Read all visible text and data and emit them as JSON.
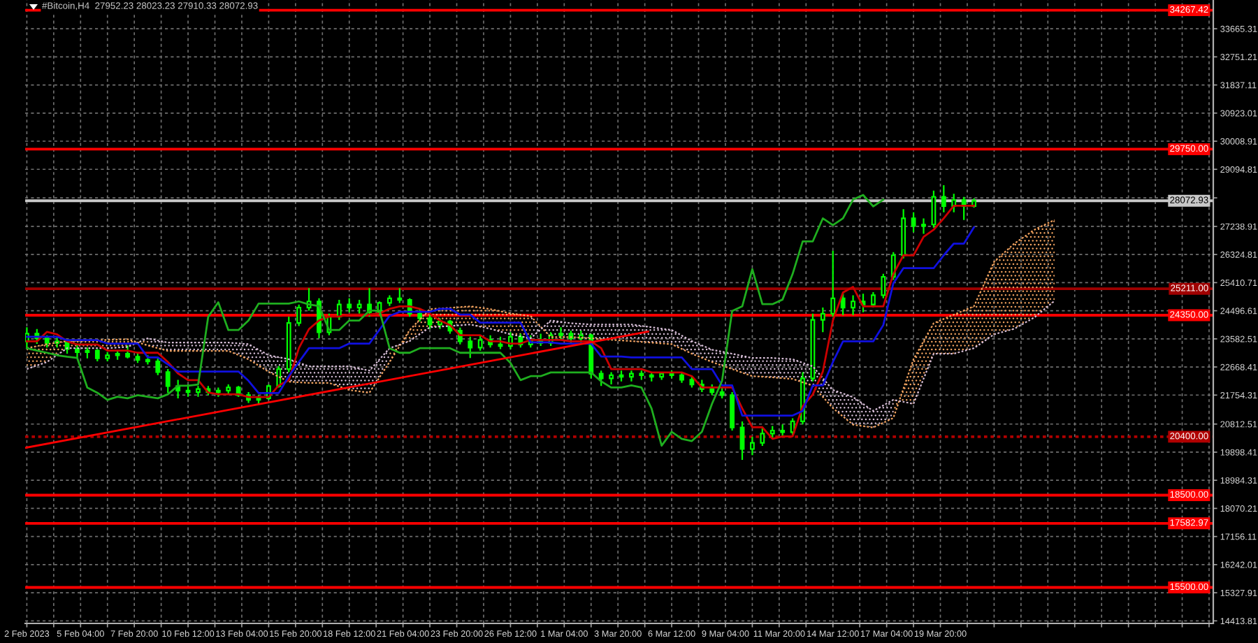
{
  "chart_data": {
    "type": "candlestick",
    "title": "#Bitcoin,H4  27952.23 28023.23 27910.33 28072.93",
    "color": "#00ff00",
    "grid": true,
    "x": [
      "2023-02-02T12:00",
      "2023-02-03T00:00",
      "2023-02-03T12:00",
      "2023-02-04T00:00",
      "2023-02-04T12:00",
      "2023-02-05T00:00",
      "2023-02-05T12:00",
      "2023-02-06T00:00",
      "2023-02-06T12:00",
      "2023-02-07T00:00",
      "2023-02-07T12:00",
      "2023-02-08T00:00",
      "2023-02-08T12:00",
      "2023-02-09T00:00",
      "2023-02-09T12:00",
      "2023-02-10T00:00",
      "2023-02-10T12:00",
      "2023-02-11T00:00",
      "2023-02-11T12:00",
      "2023-02-12T00:00",
      "2023-02-12T12:00",
      "2023-02-13T00:00",
      "2023-02-13T12:00",
      "2023-02-14T00:00",
      "2023-02-14T12:00",
      "2023-02-15T00:00",
      "2023-02-15T12:00",
      "2023-02-16T00:00",
      "2023-02-16T12:00",
      "2023-02-17T00:00",
      "2023-02-17T12:00",
      "2023-02-18T00:00",
      "2023-02-18T12:00",
      "2023-02-19T00:00",
      "2023-02-19T12:00",
      "2023-02-20T00:00",
      "2023-02-20T12:00",
      "2023-02-21T00:00",
      "2023-02-21T12:00",
      "2023-02-22T00:00",
      "2023-02-22T12:00",
      "2023-02-23T00:00",
      "2023-02-23T12:00",
      "2023-02-24T00:00",
      "2023-02-24T12:00",
      "2023-02-25T00:00",
      "2023-02-25T12:00",
      "2023-02-26T00:00",
      "2023-02-26T12:00",
      "2023-02-27T00:00",
      "2023-02-27T12:00",
      "2023-02-28T00:00",
      "2023-02-28T12:00",
      "2023-03-01T00:00",
      "2023-03-01T12:00",
      "2023-03-02T00:00",
      "2023-03-02T12:00",
      "2023-03-03T00:00",
      "2023-03-03T12:00",
      "2023-03-04T00:00",
      "2023-03-04T12:00",
      "2023-03-05T00:00",
      "2023-03-05T12:00",
      "2023-03-06T00:00",
      "2023-03-06T12:00",
      "2023-03-07T00:00",
      "2023-03-07T12:00",
      "2023-03-08T00:00",
      "2023-03-08T12:00",
      "2023-03-09T00:00",
      "2023-03-09T12:00",
      "2023-03-10T00:00",
      "2023-03-10T12:00",
      "2023-03-11T00:00",
      "2023-03-11T12:00",
      "2023-03-12T00:00",
      "2023-03-12T12:00",
      "2023-03-13T00:00",
      "2023-03-13T12:00",
      "2023-03-14T00:00",
      "2023-03-14T12:00",
      "2023-03-15T00:00",
      "2023-03-15T12:00",
      "2023-03-16T00:00",
      "2023-03-16T12:00",
      "2023-03-17T00:00",
      "2023-03-17T12:00",
      "2023-03-18T00:00",
      "2023-03-18T12:00",
      "2023-03-19T00:00",
      "2023-03-19T12:00",
      "2023-03-20T00:00",
      "2023-03-20T12:00",
      "2023-03-21T00:00",
      "2023-03-21T12:00"
    ],
    "ohlc": [
      [
        23500,
        23960,
        23300,
        23750
      ],
      [
        23750,
        23900,
        23420,
        23600
      ],
      [
        23600,
        23700,
        23300,
        23450
      ],
      [
        23450,
        23650,
        23300,
        23500
      ],
      [
        23500,
        23550,
        23100,
        23250
      ],
      [
        23250,
        23400,
        22950,
        23150
      ],
      [
        23150,
        23300,
        22950,
        23200
      ],
      [
        23200,
        23250,
        22850,
        22950
      ],
      [
        22950,
        23150,
        22850,
        23050
      ],
      [
        23050,
        23200,
        22900,
        23100
      ],
      [
        23100,
        23370,
        22950,
        23000
      ],
      [
        23000,
        23150,
        22800,
        22900
      ],
      [
        22900,
        23050,
        22750,
        22850
      ],
      [
        22850,
        22950,
        22400,
        22500
      ],
      [
        22500,
        22600,
        21830,
        22050
      ],
      [
        22050,
        22250,
        21650,
        21900
      ],
      [
        21900,
        22100,
        21700,
        21850
      ],
      [
        21850,
        22050,
        21700,
        21950
      ],
      [
        21950,
        22050,
        21750,
        21850
      ],
      [
        21850,
        22000,
        21700,
        21900
      ],
      [
        21900,
        22100,
        21800,
        22000
      ],
      [
        22000,
        22050,
        21700,
        21750
      ],
      [
        21750,
        21850,
        21500,
        21600
      ],
      [
        21600,
        21750,
        21450,
        21650
      ],
      [
        21650,
        22100,
        21600,
        22050
      ],
      [
        22050,
        22700,
        22000,
        22600
      ],
      [
        22600,
        24300,
        22500,
        24100
      ],
      [
        24100,
        24700,
        24000,
        24600
      ],
      [
        24600,
        25230,
        24500,
        24800
      ],
      [
        24800,
        24900,
        23600,
        23800
      ],
      [
        23800,
        24400,
        23700,
        24300
      ],
      [
        24300,
        24850,
        24200,
        24700
      ],
      [
        24700,
        24900,
        24450,
        24600
      ],
      [
        24600,
        24850,
        24400,
        24700
      ],
      [
        24700,
        25230,
        24300,
        24450
      ],
      [
        24450,
        24800,
        24350,
        24750
      ],
      [
        24750,
        25000,
        24650,
        24900
      ],
      [
        24900,
        25230,
        24750,
        24850
      ],
      [
        24850,
        24900,
        24300,
        24400
      ],
      [
        24400,
        24550,
        24150,
        24250
      ],
      [
        24250,
        24350,
        23900,
        24050
      ],
      [
        24050,
        24250,
        23900,
        24150
      ],
      [
        24150,
        24200,
        23750,
        23850
      ],
      [
        23850,
        23950,
        23400,
        23500
      ],
      [
        23500,
        23650,
        22960,
        23300
      ],
      [
        23300,
        23700,
        23200,
        23550
      ],
      [
        23550,
        23700,
        23300,
        23400
      ],
      [
        23400,
        23650,
        23250,
        23350
      ],
      [
        23350,
        23800,
        23250,
        23650
      ],
      [
        23650,
        23750,
        23300,
        23400
      ],
      [
        23400,
        23700,
        23300,
        23550
      ],
      [
        23550,
        23750,
        23350,
        23450
      ],
      [
        23450,
        23800,
        23350,
        23700
      ],
      [
        23700,
        23960,
        23550,
        23750
      ],
      [
        23750,
        23850,
        23450,
        23600
      ],
      [
        23600,
        23850,
        23450,
        23700
      ],
      [
        23700,
        23750,
        22300,
        22450
      ],
      [
        22450,
        22550,
        22050,
        22300
      ],
      [
        22300,
        22500,
        22100,
        22400
      ],
      [
        22400,
        22550,
        22200,
        22350
      ],
      [
        22350,
        22550,
        22200,
        22450
      ],
      [
        22450,
        22550,
        22250,
        22400
      ],
      [
        22400,
        22500,
        22200,
        22350
      ],
      [
        22350,
        22500,
        22250,
        22450
      ],
      [
        22450,
        22550,
        22300,
        22400
      ],
      [
        22400,
        22500,
        22150,
        22250
      ],
      [
        22250,
        22350,
        22000,
        22100
      ],
      [
        22100,
        22250,
        21850,
        21950
      ],
      [
        21950,
        22100,
        21750,
        21850
      ],
      [
        21850,
        22000,
        21650,
        21750
      ],
      [
        21750,
        21850,
        20600,
        20700
      ],
      [
        20700,
        20900,
        19650,
        20000
      ],
      [
        20000,
        20400,
        19800,
        20200
      ],
      [
        20200,
        20700,
        20100,
        20500
      ],
      [
        20500,
        20750,
        20350,
        20600
      ],
      [
        20600,
        20800,
        20400,
        20550
      ],
      [
        20550,
        21000,
        20450,
        20900
      ],
      [
        20900,
        22500,
        20800,
        22300
      ],
      [
        22300,
        24400,
        22200,
        24200
      ],
      [
        24200,
        24600,
        23800,
        24400
      ],
      [
        24400,
        26450,
        24300,
        24900
      ],
      [
        24900,
        25100,
        24350,
        24600
      ],
      [
        24600,
        25000,
        24350,
        24800
      ],
      [
        24800,
        25050,
        24450,
        24700
      ],
      [
        24700,
        25100,
        24600,
        25000
      ],
      [
        25000,
        25700,
        24900,
        25600
      ],
      [
        25600,
        26400,
        25500,
        26300
      ],
      [
        26300,
        27800,
        26200,
        27500
      ],
      [
        27500,
        27700,
        27050,
        27250
      ],
      [
        27250,
        27500,
        27000,
        27300
      ],
      [
        27300,
        28400,
        27200,
        28200
      ],
      [
        28200,
        28580,
        27700,
        27900
      ],
      [
        27900,
        28300,
        27700,
        28100
      ],
      [
        28100,
        28200,
        27450,
        27900
      ],
      [
        27900,
        28150,
        27850,
        28070
      ]
    ],
    "series": [
      {
        "type": "line",
        "color": "#f4a460",
        "line_style": "dotted",
        "x": [
          "2023-02-02T12:00",
          "2023-02-03T12:00",
          "2023-02-04T12:00",
          "2023-02-05T12:00",
          "2023-02-06T12:00",
          "2023-02-07T12:00",
          "2023-02-08T12:00",
          "2023-02-09T12:00",
          "2023-02-10T12:00",
          "2023-02-11T12:00",
          "2023-02-12T12:00",
          "2023-02-13T12:00",
          "2023-02-14T12:00",
          "2023-02-15T12:00",
          "2023-02-16T12:00",
          "2023-02-17T12:00",
          "2023-02-18T12:00",
          "2023-02-19T12:00",
          "2023-02-20T12:00",
          "2023-02-21T12:00",
          "2023-02-22T12:00",
          "2023-02-23T12:00",
          "2023-02-24T12:00",
          "2023-02-25T12:00",
          "2023-02-26T12:00",
          "2023-02-27T12:00",
          "2023-02-28T12:00",
          "2023-03-01T12:00",
          "2023-03-02T12:00",
          "2023-03-03T12:00",
          "2023-03-04T12:00",
          "2023-03-05T12:00",
          "2023-03-06T12:00",
          "2023-03-07T12:00",
          "2023-03-08T12:00",
          "2023-03-09T12:00",
          "2023-03-10T12:00",
          "2023-03-11T12:00",
          "2023-03-12T12:00",
          "2023-03-13T12:00",
          "2023-03-14T12:00",
          "2023-03-15T12:00",
          "2023-03-16T12:00",
          "2023-03-17T12:00",
          "2023-03-18T12:00",
          "2023-03-19T12:00",
          "2023-03-20T12:00",
          "2023-03-21T12:00",
          "2023-03-22T12:00",
          "2023-03-23T12:00",
          "2023-03-24T12:00",
          "2023-03-25T12:00"
        ],
        "values": [
          23280,
          23410,
          23510,
          23530,
          23550,
          23570,
          23370,
          23190,
          23190,
          23190,
          23190,
          22920,
          22510,
          22190,
          22150,
          22150,
          21920,
          21830,
          22830,
          23870,
          24550,
          24590,
          24640,
          24550,
          24410,
          24320,
          23640,
          23640,
          23600,
          23550,
          23510,
          23460,
          23410,
          23100,
          22830,
          22600,
          22370,
          22330,
          22280,
          22060,
          21330,
          20790,
          20700,
          21010,
          22920,
          24090,
          24370,
          24640,
          26090,
          26680,
          27130,
          27450
        ],
        "lower": [
          22600,
          22830,
          23280,
          23280,
          23280,
          23320,
          23600,
          null,
          null,
          null,
          null,
          null,
          null,
          null,
          null,
          null,
          null,
          null,
          23280,
          23510,
          23960,
          24000,
          24050,
          23910,
          23730,
          23600,
          null,
          null,
          null,
          null,
          null,
          null,
          null,
          null,
          null,
          null,
          null,
          null,
          null,
          null,
          null,
          null,
          null,
          21600,
          21470,
          23100,
          23100,
          23280,
          23730,
          23910,
          24280,
          24820
        ],
        "upper": [
          23280,
          23410,
          23510,
          23530,
          23550,
          23570,
          23370,
          null,
          null,
          null,
          null,
          null,
          null,
          null,
          null,
          null,
          null,
          null,
          22830,
          23870,
          24550,
          24590,
          24640,
          24550,
          24410,
          24320,
          null,
          null,
          null,
          null,
          null,
          null,
          null,
          null,
          null,
          null,
          null,
          null,
          null,
          null,
          null,
          null,
          null,
          21010,
          22920,
          24090,
          24370,
          24640,
          26090,
          26680,
          27130,
          27450
        ]
      },
      {
        "type": "line",
        "color": "#d8bfd8",
        "line_style": "dotted",
        "x": [
          "2023-02-02T12:00",
          "2023-02-03T12:00",
          "2023-02-04T12:00",
          "2023-02-05T12:00",
          "2023-02-06T12:00",
          "2023-02-07T12:00",
          "2023-02-08T12:00",
          "2023-02-09T12:00",
          "2023-02-10T12:00",
          "2023-02-11T12:00",
          "2023-02-12T12:00",
          "2023-02-13T12:00",
          "2023-02-14T12:00",
          "2023-02-15T12:00",
          "2023-02-16T12:00",
          "2023-02-17T12:00",
          "2023-02-18T12:00",
          "2023-02-19T12:00",
          "2023-02-20T12:00",
          "2023-02-21T12:00",
          "2023-02-22T12:00",
          "2023-02-23T12:00",
          "2023-02-24T12:00",
          "2023-02-25T12:00",
          "2023-02-26T12:00",
          "2023-02-27T12:00",
          "2023-02-28T12:00",
          "2023-03-01T12:00",
          "2023-03-02T12:00",
          "2023-03-03T12:00",
          "2023-03-04T12:00",
          "2023-03-05T12:00",
          "2023-03-06T12:00",
          "2023-03-07T12:00",
          "2023-03-08T12:00",
          "2023-03-09T12:00",
          "2023-03-10T12:00",
          "2023-03-11T12:00",
          "2023-03-12T12:00",
          "2023-03-13T12:00",
          "2023-03-14T12:00",
          "2023-03-15T12:00",
          "2023-03-16T12:00",
          "2023-03-17T12:00",
          "2023-03-18T12:00",
          "2023-03-19T12:00",
          "2023-03-20T12:00",
          "2023-03-21T12:00",
          "2023-03-22T12:00",
          "2023-03-23T12:00",
          "2023-03-24T12:00",
          "2023-03-25T12:00"
        ],
        "values": [
          22600,
          22830,
          23280,
          23280,
          23280,
          23320,
          23600,
          23460,
          23460,
          23460,
          23460,
          23410,
          23050,
          22920,
          22690,
          22690,
          22690,
          22550,
          23280,
          23510,
          23960,
          24000,
          24050,
          23910,
          23730,
          23600,
          24180,
          24090,
          24050,
          24050,
          24050,
          23960,
          23870,
          23510,
          23230,
          23100,
          22960,
          22960,
          22920,
          22690,
          21920,
          21690,
          21240,
          21600,
          21470,
          23100,
          23100,
          23280,
          23730,
          23910,
          24280,
          24820
        ],
        "lower": [
          null,
          null,
          null,
          null,
          null,
          null,
          23370,
          23190,
          23190,
          23190,
          23190,
          22920,
          22510,
          22190,
          22150,
          22150,
          21920,
          21830,
          22830,
          null,
          null,
          null,
          null,
          null,
          null,
          24320,
          23640,
          23640,
          23600,
          23550,
          23510,
          23460,
          23410,
          23100,
          22830,
          22600,
          22370,
          22330,
          22280,
          22060,
          21330,
          20790,
          20700,
          21010,
          null,
          null,
          null,
          null,
          null,
          null,
          null,
          null
        ],
        "upper": [
          null,
          null,
          null,
          null,
          null,
          null,
          23600,
          23460,
          23460,
          23460,
          23460,
          23410,
          23050,
          22920,
          22690,
          22690,
          22690,
          22550,
          23280,
          null,
          null,
          null,
          null,
          null,
          null,
          23600,
          24180,
          24090,
          24050,
          24050,
          24050,
          23960,
          23870,
          23510,
          23230,
          23100,
          22960,
          22960,
          22920,
          22690,
          21920,
          21690,
          21240,
          21600,
          null,
          null,
          null,
          null,
          null,
          null,
          null,
          null
        ]
      },
      {
        "type": "line",
        "color": "#cc0000",
        "values": [
          23500,
          23500,
          23810,
          23730,
          23500,
          23400,
          23400,
          23400,
          23200,
          23200,
          23200,
          23130,
          23130,
          23130,
          22830,
          22460,
          22240,
          22240,
          21840,
          21780,
          21780,
          21780,
          21690,
          21690,
          21690,
          22070,
          22240,
          23280,
          23900,
          24180,
          24310,
          24310,
          24370,
          24370,
          24370,
          24410,
          24560,
          24640,
          24640,
          24560,
          24400,
          24180,
          24030,
          23700,
          23700,
          23700,
          23500,
          23500,
          23430,
          23430,
          23550,
          23550,
          23550,
          23550,
          23500,
          23500,
          23500,
          23280,
          22600,
          22600,
          22600,
          22600,
          22490,
          22490,
          22490,
          22490,
          22370,
          22000,
          22000,
          22000,
          22000,
          21320,
          20710,
          20710,
          20330,
          20410,
          20410,
          21390,
          21770,
          22520,
          24180,
          25090,
          25270,
          24640,
          24640,
          24640,
          25690,
          26300,
          26300,
          26900,
          27130,
          27500,
          27910,
          27910,
          27910
        ]
      },
      {
        "type": "line",
        "color": "#1010e0",
        "values": [
          23650,
          23650,
          23650,
          23650,
          23540,
          23540,
          23540,
          23540,
          23430,
          23430,
          23430,
          23430,
          22980,
          22980,
          22750,
          22520,
          22520,
          22520,
          22520,
          22520,
          22520,
          22520,
          22220,
          21820,
          21820,
          21820,
          22370,
          22830,
          23280,
          23280,
          23280,
          23280,
          23430,
          23430,
          23430,
          23880,
          24330,
          24460,
          24460,
          24460,
          24460,
          24560,
          24560,
          24370,
          24370,
          24110,
          24110,
          24110,
          24110,
          24110,
          23470,
          23470,
          23470,
          23430,
          23430,
          23430,
          23430,
          23010,
          23010,
          23010,
          22980,
          22980,
          22980,
          22980,
          22980,
          22980,
          22600,
          22600,
          22600,
          22070,
          22070,
          21090,
          21090,
          21090,
          21090,
          21090,
          21090,
          21240,
          22070,
          22070,
          22830,
          23500,
          23500,
          23500,
          23500,
          24030,
          25390,
          25880,
          25880,
          25880,
          25880,
          26300,
          26680,
          26680,
          27210
        ]
      },
      {
        "type": "line",
        "color": "#1fae1f",
        "values": [
          23280,
          23200,
          23130,
          23050,
          23000,
          22960,
          22000,
          21830,
          21600,
          21700,
          21650,
          21750,
          21700,
          21650,
          21780,
          22060,
          22060,
          22100,
          24300,
          24770,
          23870,
          23870,
          24180,
          24730,
          24730,
          24730,
          24730,
          24800,
          24700,
          24650,
          23870,
          23870,
          24180,
          24180,
          24500,
          24500,
          23280,
          23130,
          23130,
          23280,
          23280,
          23280,
          23280,
          23130,
          23130,
          23130,
          23130,
          23130,
          22800,
          22240,
          22370,
          22370,
          22490,
          22490,
          22490,
          22490,
          22490,
          22200,
          22000,
          22000,
          22070,
          22000,
          21320,
          20110,
          20560,
          20330,
          20260,
          20560,
          21470,
          22220,
          24490,
          24640,
          25850,
          24710,
          24710,
          24860,
          25690,
          26750,
          26750,
          27500,
          27280,
          27500,
          28110,
          28260,
          27890,
          28110,
          null,
          null,
          null,
          null,
          null,
          null,
          null,
          null,
          null
        ]
      },
      {
        "type": "line",
        "color": "#ff0000",
        "x": [
          "2023-02-02T10:00",
          "2023-03-05T08:00"
        ],
        "values": [
          20040,
          23820
        ]
      }
    ],
    "xlim": [
      "2023-02-02T10:00",
      "2023-04-02T09:00"
    ],
    "xticks": [
      {
        "value": "2023-02-02T12:00",
        "label": "2 Feb 2023"
      },
      {
        "value": "2023-02-03T20:00",
        "label": null
      },
      {
        "value": "2023-02-05T04:00",
        "label": "5 Feb 04:00"
      },
      {
        "value": "2023-02-06T12:00",
        "label": null
      },
      {
        "value": "2023-02-07T20:00",
        "label": "7 Feb 20:00"
      },
      {
        "value": "2023-02-09T04:00",
        "label": null
      },
      {
        "value": "2023-02-10T12:00",
        "label": "10 Feb 12:00"
      },
      {
        "value": "2023-02-11T20:00",
        "label": null
      },
      {
        "value": "2023-02-13T04:00",
        "label": "13 Feb 04:00"
      },
      {
        "value": "2023-02-14T12:00",
        "label": null
      },
      {
        "value": "2023-02-15T20:00",
        "label": "15 Feb 20:00"
      },
      {
        "value": "2023-02-17T04:00",
        "label": null
      },
      {
        "value": "2023-02-18T12:00",
        "label": "18 Feb 12:00"
      },
      {
        "value": "2023-02-19T20:00",
        "label": null
      },
      {
        "value": "2023-02-21T04:00",
        "label": "21 Feb 04:00"
      },
      {
        "value": "2023-02-22T12:00",
        "label": null
      },
      {
        "value": "2023-02-23T20:00",
        "label": "23 Feb 20:00"
      },
      {
        "value": "2023-02-25T04:00",
        "label": null
      },
      {
        "value": "2023-02-26T12:00",
        "label": "26 Feb 12:00"
      },
      {
        "value": "2023-02-27T20:00",
        "label": null
      },
      {
        "value": "2023-03-01T04:00",
        "label": "1 Mar 04:00"
      },
      {
        "value": "2023-03-02T12:00",
        "label": null
      },
      {
        "value": "2023-03-03T20:00",
        "label": "3 Mar 20:00"
      },
      {
        "value": "2023-03-05T04:00",
        "label": null
      },
      {
        "value": "2023-03-06T12:00",
        "label": "6 Mar 12:00"
      },
      {
        "value": "2023-03-07T20:00",
        "label": null
      },
      {
        "value": "2023-03-09T04:00",
        "label": "9 Mar 04:00"
      },
      {
        "value": "2023-03-10T12:00",
        "label": null
      },
      {
        "value": "2023-03-11T20:00",
        "label": "11 Mar 20:00"
      },
      {
        "value": "2023-03-13T04:00",
        "label": null
      },
      {
        "value": "2023-03-14T12:00",
        "label": "14 Mar 12:00"
      },
      {
        "value": "2023-03-15T20:00",
        "label": null
      },
      {
        "value": "2023-03-17T04:00",
        "label": "17 Mar 04:00"
      },
      {
        "value": "2023-03-18T12:00",
        "label": null
      },
      {
        "value": "2023-03-19T20:00",
        "label": "19 Mar 20:00"
      },
      {
        "value": "2023-03-21T04:00",
        "label": null
      },
      {
        "value": "2023-03-22T12:00",
        "label": null
      },
      {
        "value": "2023-03-23T20:00",
        "label": null
      },
      {
        "value": "2023-03-25T04:00",
        "label": null
      },
      {
        "value": "2023-03-26T12:00",
        "label": null
      },
      {
        "value": "2023-03-27T20:00",
        "label": null
      },
      {
        "value": "2023-03-29T04:00",
        "label": null
      },
      {
        "value": "2023-03-30T12:00",
        "label": null
      },
      {
        "value": "2023-03-31T20:00",
        "label": null
      },
      {
        "value": "2023-04-02T04:00",
        "label": null
      }
    ],
    "ylim": [
      14330,
      34600
    ],
    "yticks": [
      14413.81,
      15327.91,
      16242.01,
      17156.11,
      18070.21,
      18984.31,
      19898.41,
      20812.51,
      21754.31,
      22668.41,
      23582.51,
      24496.61,
      25410.71,
      26324.81,
      27238.91,
      {
        "value": 28167,
        "label": null
      },
      29094.81,
      30008.91,
      30923.01,
      31837.11,
      32751.21,
      33665.31
    ],
    "ref_lines": [
      {
        "axis": "y",
        "value": 34267.42,
        "label": "34267.42",
        "color": "#ff0000",
        "line_style": "solid"
      },
      {
        "axis": "y",
        "value": 29750.0,
        "label": "29750.00",
        "color": "#ff0000",
        "line_style": "solid"
      },
      {
        "axis": "y",
        "value": 28072.93,
        "label": "28072.93",
        "color": "#c8c8c8",
        "line_style": "solid"
      },
      {
        "axis": "y",
        "value": 25211.0,
        "label": "25211.00",
        "color": "#a00000",
        "line_style": "solid"
      },
      {
        "axis": "y",
        "value": 24350.0,
        "label": "24350.00",
        "color": "#ff0000",
        "line_style": "solid"
      },
      {
        "axis": "y",
        "value": 20400.0,
        "label": "20400.00",
        "color": "#b00000",
        "line_style": "dotted"
      },
      {
        "axis": "y",
        "value": 18500.0,
        "label": "18500.00",
        "color": "#ff0000",
        "line_style": "solid"
      },
      {
        "axis": "y",
        "value": 17582.97,
        "label": "17582.97",
        "color": "#ff0000",
        "line_style": "solid"
      },
      {
        "axis": "y",
        "value": 15500.0,
        "label": "15500.00",
        "color": "#ff0000",
        "line_style": "solid"
      }
    ]
  }
}
